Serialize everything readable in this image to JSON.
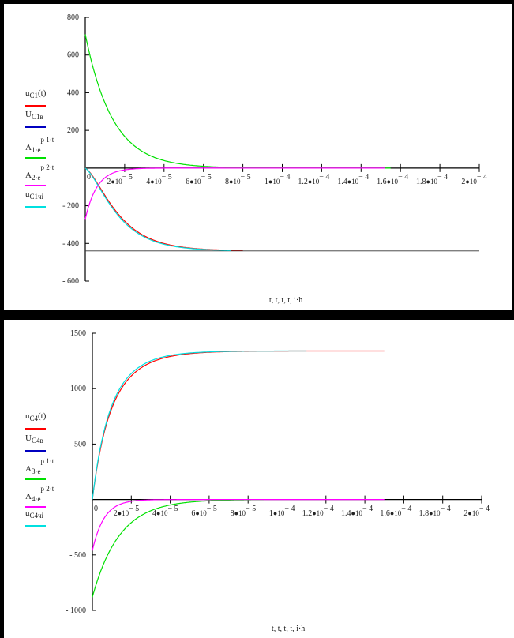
{
  "chart_data": [
    {
      "type": "line",
      "title": "",
      "xlabel": "t, t, t, t, i·h",
      "ylabel": "",
      "xlim": [
        0,
        0.0002
      ],
      "ylim": [
        -600,
        800
      ],
      "grid": false,
      "legend_placement": "left",
      "yticks": [
        {
          "v": 800,
          "label": "800"
        },
        {
          "v": 600,
          "label": "600"
        },
        {
          "v": 400,
          "label": "400"
        },
        {
          "v": 200,
          "label": "200"
        },
        {
          "v": -200,
          "label": "- 200"
        },
        {
          "v": -400,
          "label": "- 400"
        },
        {
          "v": -600,
          "label": "- 600"
        }
      ],
      "xticks": [
        {
          "v": 0,
          "m": "0",
          "e": ""
        },
        {
          "v": 2e-05,
          "m": "2",
          "e": "− 5"
        },
        {
          "v": 4e-05,
          "m": "4",
          "e": "− 5"
        },
        {
          "v": 6e-05,
          "m": "6",
          "e": "− 5"
        },
        {
          "v": 8e-05,
          "m": "8",
          "e": "− 5"
        },
        {
          "v": 0.0001,
          "m": "1",
          "e": "− 4"
        },
        {
          "v": 0.00012,
          "m": "1.2",
          "e": "− 4"
        },
        {
          "v": 0.00014,
          "m": "1.4",
          "e": "− 4"
        },
        {
          "v": 0.00016,
          "m": "1.6",
          "e": "− 4"
        },
        {
          "v": 0.00018,
          "m": "1.8",
          "e": "− 4"
        },
        {
          "v": 0.0002,
          "m": "2",
          "e": "− 4"
        }
      ],
      "series": [
        {
          "name": "u C1(t)",
          "main": "u",
          "sub": "C1",
          "sup": "",
          "tail": "(t)",
          "color": "#ff0000",
          "c": -440,
          "terms": [
            [
              710,
              -72000
            ],
            [
              -270,
              -166000
            ]
          ],
          "t_end": 8e-05
        },
        {
          "name": "U C1в",
          "main": "U",
          "sub": "C1в",
          "sup": "",
          "tail": "",
          "color": "#0000c0",
          "c": -440,
          "terms": [],
          "t_end": 0.0002,
          "draw_color": "#333333"
        },
        {
          "name": "A 1·e^(p 1·t)",
          "main": "A",
          "sub": "1·e",
          "sup": "p 1·t",
          "tail": "",
          "color": "#00e000",
          "c": 0,
          "terms": [
            [
              710,
              -72000
            ]
          ],
          "t_end": 0.000155
        },
        {
          "name": "A 2·e^(p 2·t)",
          "main": "A",
          "sub": "2·e",
          "sup": "p 2·t",
          "tail": "",
          "color": "#ff00ff",
          "c": 0,
          "terms": [
            [
              -270,
              -166000
            ]
          ],
          "t_end": 0.000152
        },
        {
          "name": "u C1ч i",
          "main": "u",
          "sub": "C1ч",
          "sup": "",
          "tail": "i",
          "color": "#00e0e0",
          "c": -440,
          "terms": [
            [
              720,
              -75000
            ],
            [
              -280,
              -166000
            ]
          ],
          "t_end": 7.4e-05
        }
      ]
    },
    {
      "type": "line",
      "title": "",
      "xlabel": "t, t, t, t, i·h",
      "ylabel": "",
      "xlim": [
        0,
        0.0002
      ],
      "ylim": [
        -1000,
        1500
      ],
      "grid": false,
      "legend_placement": "left",
      "yticks": [
        {
          "v": 1500,
          "label": "1500"
        },
        {
          "v": 1000,
          "label": "1000"
        },
        {
          "v": 500,
          "label": "500"
        },
        {
          "v": -500,
          "label": "- 500"
        },
        {
          "v": -1000,
          "label": "- 1000"
        }
      ],
      "xticks": [
        {
          "v": 0,
          "m": "0",
          "e": ""
        },
        {
          "v": 2e-05,
          "m": "2",
          "e": "− 5"
        },
        {
          "v": 4e-05,
          "m": "4",
          "e": "− 5"
        },
        {
          "v": 6e-05,
          "m": "6",
          "e": "− 5"
        },
        {
          "v": 8e-05,
          "m": "8",
          "e": "− 5"
        },
        {
          "v": 0.0001,
          "m": "1",
          "e": "− 4"
        },
        {
          "v": 0.00012,
          "m": "1.2",
          "e": "− 4"
        },
        {
          "v": 0.00014,
          "m": "1.4",
          "e": "− 4"
        },
        {
          "v": 0.00016,
          "m": "1.6",
          "e": "− 4"
        },
        {
          "v": 0.00018,
          "m": "1.8",
          "e": "− 4"
        },
        {
          "v": 0.0002,
          "m": "2",
          "e": "− 4"
        }
      ],
      "series": [
        {
          "name": "u C4(t)",
          "main": "u",
          "sub": "C4",
          "sup": "",
          "tail": "(t)",
          "color": "#ff0000",
          "c": 1340,
          "terms": [
            [
              -880,
              -72000
            ],
            [
              -460,
              -166000
            ]
          ],
          "t_end": 0.00015
        },
        {
          "name": "U C4в",
          "main": "U",
          "sub": "C4в",
          "sup": "",
          "tail": "",
          "color": "#0000c0",
          "c": 1340,
          "terms": [],
          "t_end": 0.0002,
          "draw_color": "#333333"
        },
        {
          "name": "A 3·e^(p 1·t)",
          "main": "A",
          "sub": "3·e",
          "sup": "p 1·t",
          "tail": "",
          "color": "#00e000",
          "c": 0,
          "terms": [
            [
              -880,
              -72000
            ]
          ],
          "t_end": 8.8e-05
        },
        {
          "name": "A 4·e^(p 2·t)",
          "main": "A",
          "sub": "4·e",
          "sup": "p 2·t",
          "tail": "",
          "color": "#ff00ff",
          "c": 0,
          "terms": [
            [
              -460,
              -166000
            ]
          ],
          "t_end": 0.00015
        },
        {
          "name": "u C4ч i",
          "main": "u",
          "sub": "C4ч",
          "sup": "",
          "tail": "i",
          "color": "#00e0e0",
          "c": 1340,
          "terms": [
            [
              -900,
              -78000
            ],
            [
              -440,
              -170000
            ]
          ],
          "t_end": 0.00011
        }
      ]
    }
  ]
}
